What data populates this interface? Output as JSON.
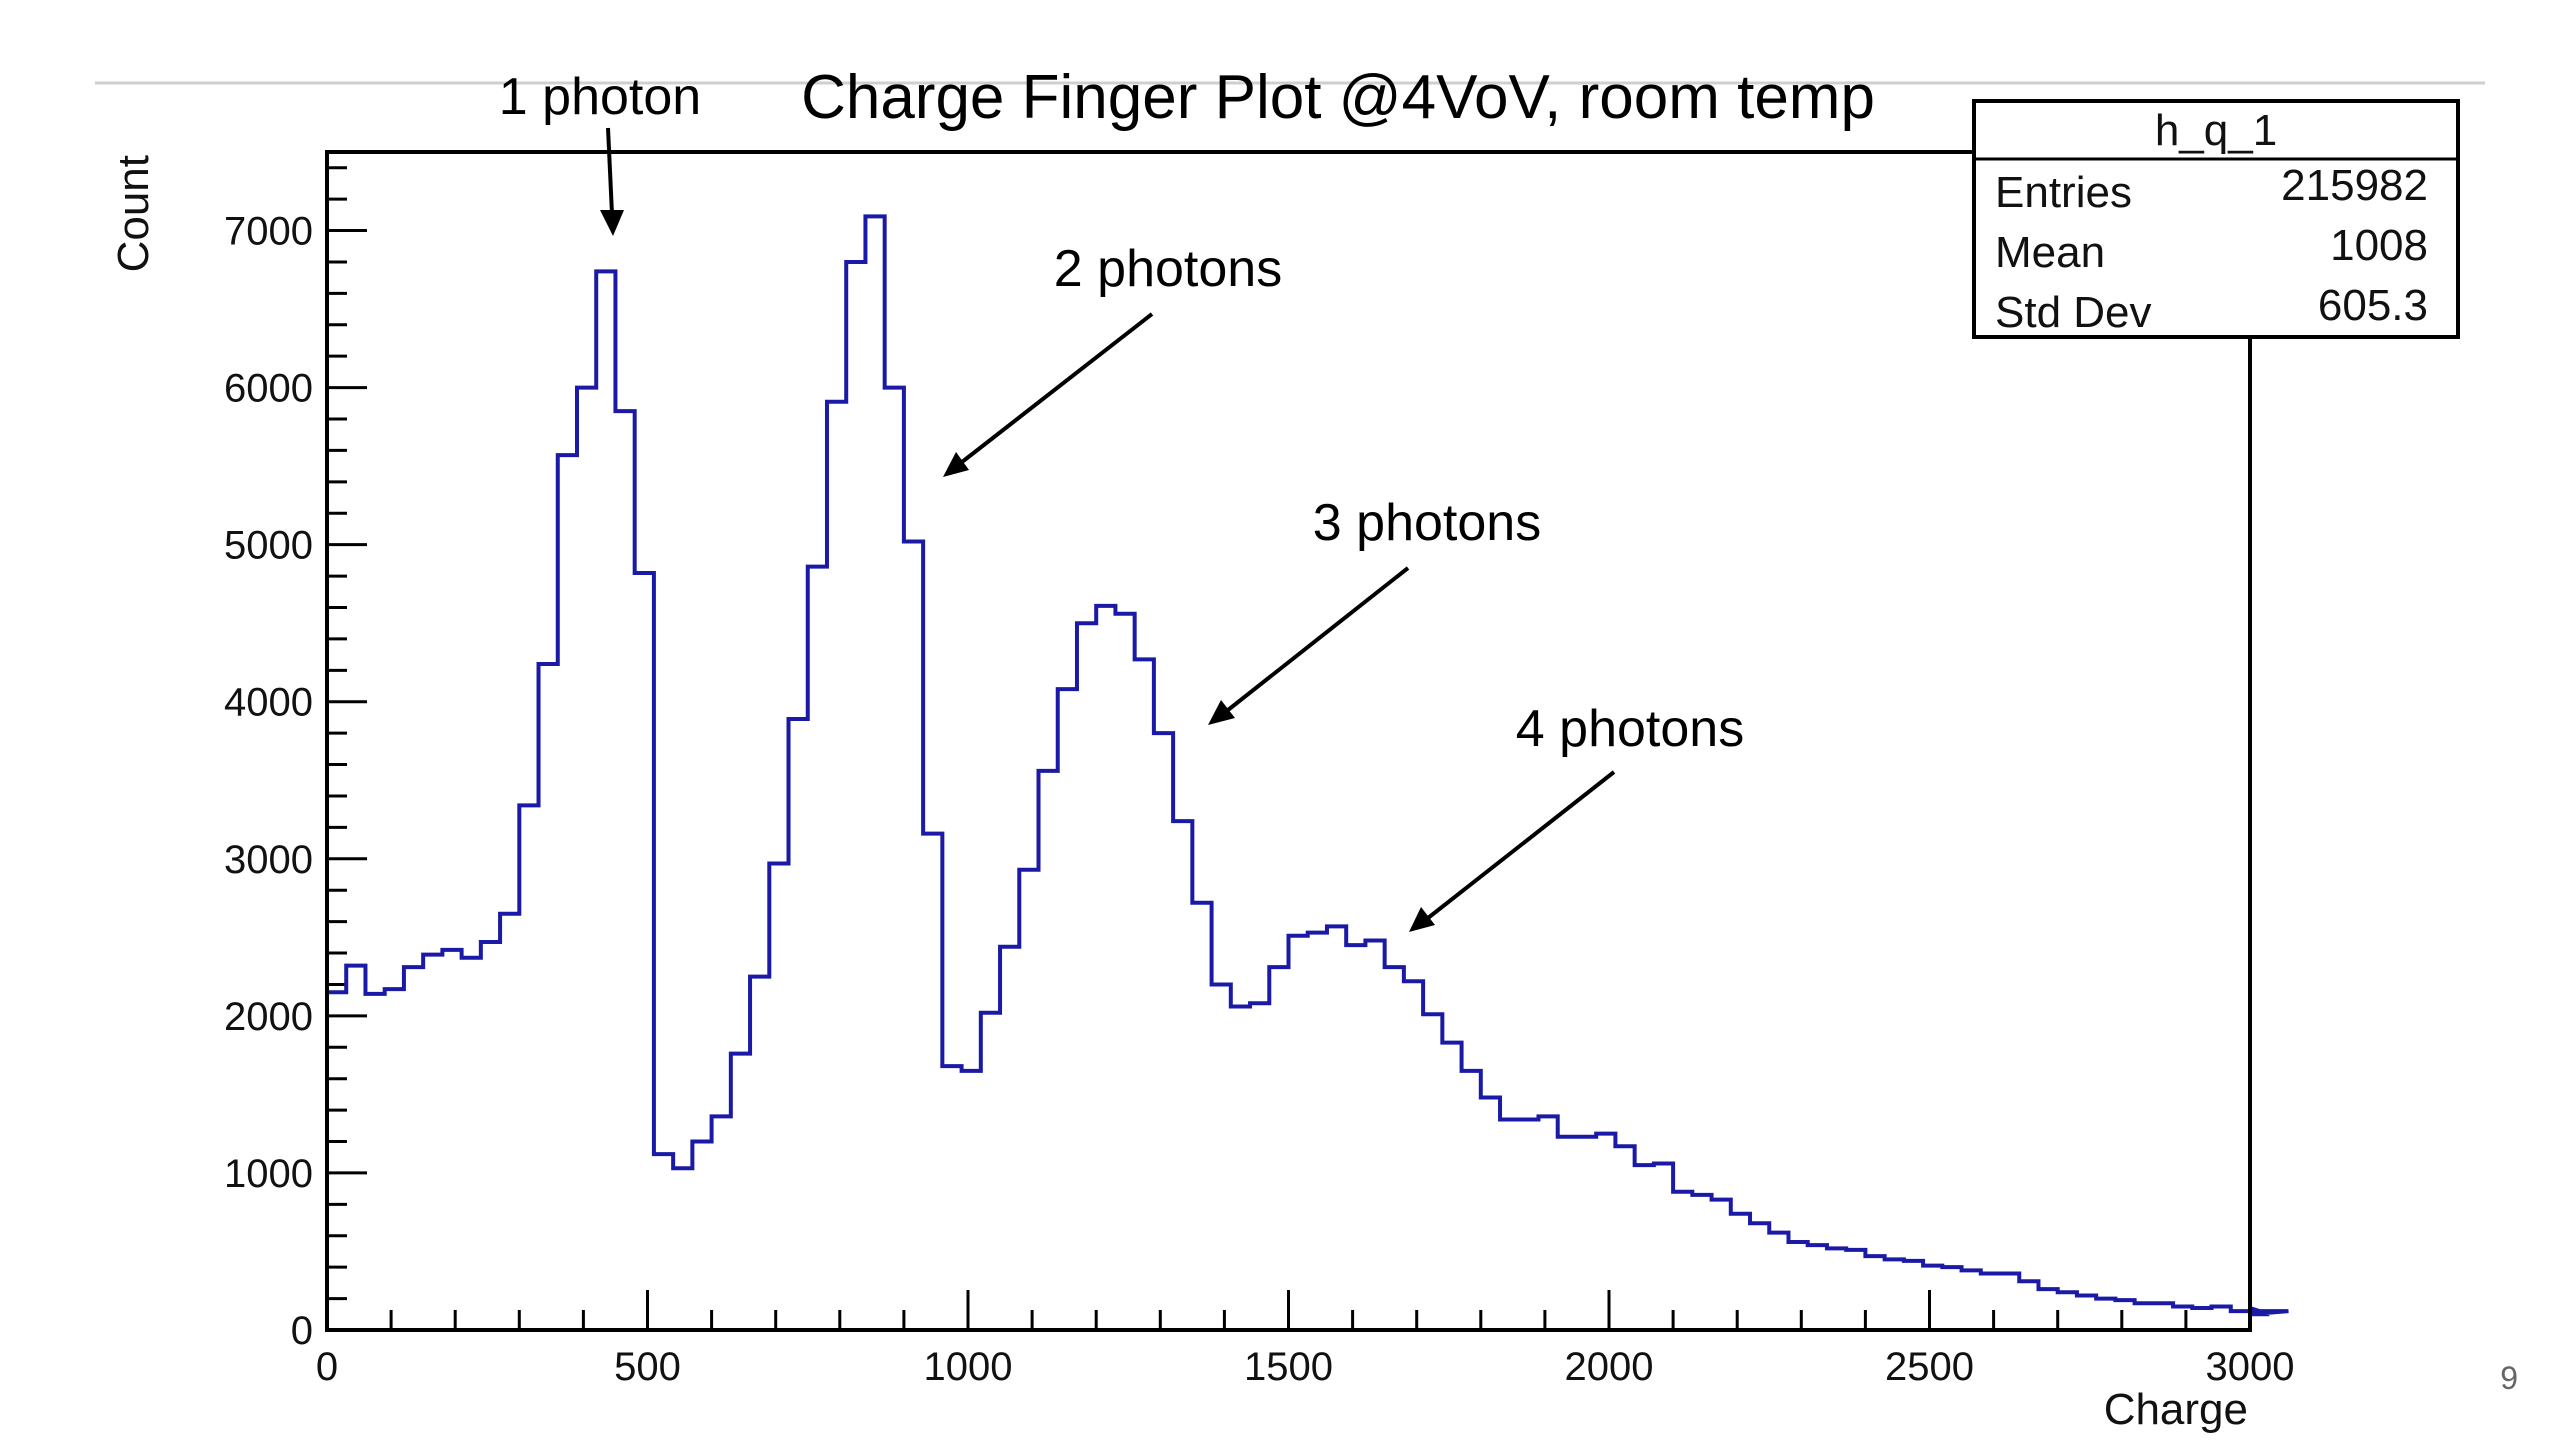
{
  "slide": {
    "page_number": "9"
  },
  "chart_data": {
    "type": "histogram",
    "title": "Charge Finger Plot @4VoV, room temp",
    "xlabel": "Charge",
    "ylabel": "Count",
    "xlim": [
      0,
      3000
    ],
    "ylim": [
      0,
      7500
    ],
    "x_ticks": [
      0,
      500,
      1000,
      1500,
      2000,
      2500,
      3000
    ],
    "x_tick_labels": [
      "0",
      "500",
      "1000",
      "1500",
      "2000",
      "2500",
      "3000"
    ],
    "y_ticks": [
      0,
      1000,
      2000,
      3000,
      4000,
      5000,
      6000,
      7000
    ],
    "y_tick_labels": [
      "0",
      "1000",
      "2000",
      "3000",
      "4000",
      "5000",
      "6000",
      "7000"
    ],
    "grid": false,
    "line_color": "#1a1aa6",
    "bin_width": 30,
    "bin_start": 0,
    "counts": [
      2150,
      2320,
      2140,
      2170,
      2310,
      2390,
      2420,
      2370,
      2470,
      2650,
      3340,
      4240,
      5570,
      6000,
      6740,
      5850,
      4820,
      1120,
      1030,
      1200,
      1360,
      1760,
      2250,
      2970,
      3890,
      4860,
      5910,
      6800,
      7090,
      6000,
      5020,
      3160,
      1680,
      1650,
      2020,
      2440,
      2930,
      3560,
      4080,
      4500,
      4610,
      4560,
      4270,
      3800,
      3240,
      2720,
      2200,
      2060,
      2080,
      2310,
      2510,
      2530,
      2570,
      2450,
      2480,
      2310,
      2220,
      2010,
      1830,
      1650,
      1480,
      1340,
      1340,
      1360,
      1230,
      1230,
      1250,
      1170,
      1050,
      1060,
      880,
      860,
      830,
      740,
      680,
      620,
      560,
      540,
      520,
      510,
      470,
      450,
      440,
      410,
      400,
      380,
      360,
      360,
      310,
      260,
      240,
      220,
      200,
      190,
      170,
      170,
      150,
      140,
      150,
      120,
      140,
      100,
      120
    ],
    "annotations": [
      {
        "text": "1 photon",
        "x": 440,
        "y": 6960
      },
      {
        "text": "2 photons",
        "x": 960,
        "y": 5420
      },
      {
        "text": "3 photons",
        "x": 1370,
        "y": 3880
      },
      {
        "text": "4 photons",
        "x": 1690,
        "y": 2530
      }
    ],
    "stats_box": {
      "name": "h_q_1",
      "rows": [
        {
          "label": "Entries",
          "value": "215982"
        },
        {
          "label": "Mean",
          "value": "1008"
        },
        {
          "label": "Std Dev",
          "value": "605.3"
        }
      ]
    }
  }
}
